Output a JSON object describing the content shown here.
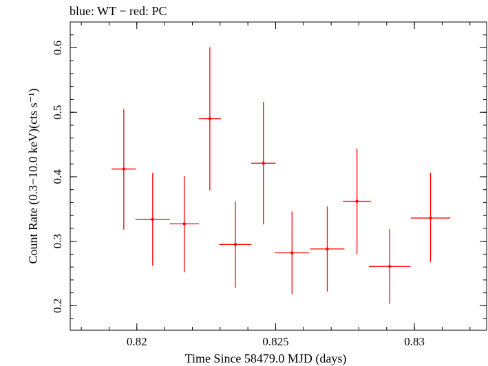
{
  "chart_data": {
    "type": "scatter",
    "title": "blue: WT − red: PC",
    "xlabel": "Time Since 58479.0 MJD (days)",
    "ylabel": "Count Rate (0.3−10.0 keV)(cts s⁻¹)",
    "xlim": [
      0.8176,
      0.8326
    ],
    "ylim": [
      0.162,
      0.64
    ],
    "x_ticks": [
      0.82,
      0.825,
      0.83
    ],
    "x_tick_labels": [
      "0.82",
      "0.825",
      "0.83"
    ],
    "y_ticks": [
      0.2,
      0.3,
      0.4,
      0.5,
      0.6
    ],
    "y_tick_labels": [
      "0.2",
      "0.3",
      "0.4",
      "0.5",
      "0.6"
    ],
    "grid": false,
    "series": [
      {
        "color": "#ff0000",
        "points": [
          {
            "x": 0.81953,
            "xerr": 0.00044,
            "y": 0.412,
            "yerr_lo": 0.094,
            "yerr_hi": 0.093
          },
          {
            "x": 0.82057,
            "xerr": 0.00062,
            "y": 0.334,
            "yerr_lo": 0.072,
            "yerr_hi": 0.072
          },
          {
            "x": 0.82171,
            "xerr": 0.00053,
            "y": 0.327,
            "yerr_lo": 0.075,
            "yerr_hi": 0.074
          },
          {
            "x": 0.82263,
            "xerr": 0.0004,
            "y": 0.49,
            "yerr_lo": 0.111,
            "yerr_hi": 0.111
          },
          {
            "x": 0.82355,
            "xerr": 0.00058,
            "y": 0.295,
            "yerr_lo": 0.067,
            "yerr_hi": 0.067
          },
          {
            "x": 0.82456,
            "xerr": 0.00044,
            "y": 0.421,
            "yerr_lo": 0.095,
            "yerr_hi": 0.095
          },
          {
            "x": 0.82559,
            "xerr": 0.00062,
            "y": 0.282,
            "yerr_lo": 0.064,
            "yerr_hi": 0.064
          },
          {
            "x": 0.82686,
            "xerr": 0.00062,
            "y": 0.288,
            "yerr_lo": 0.066,
            "yerr_hi": 0.066
          },
          {
            "x": 0.82793,
            "xerr": 0.00051,
            "y": 0.362,
            "yerr_lo": 0.082,
            "yerr_hi": 0.082
          },
          {
            "x": 0.82911,
            "xerr": 0.00075,
            "y": 0.261,
            "yerr_lo": 0.058,
            "yerr_hi": 0.058
          },
          {
            "x": 0.83058,
            "xerr": 0.00071,
            "y": 0.336,
            "yerr_lo": 0.068,
            "yerr_hi": 0.07
          }
        ]
      }
    ]
  }
}
